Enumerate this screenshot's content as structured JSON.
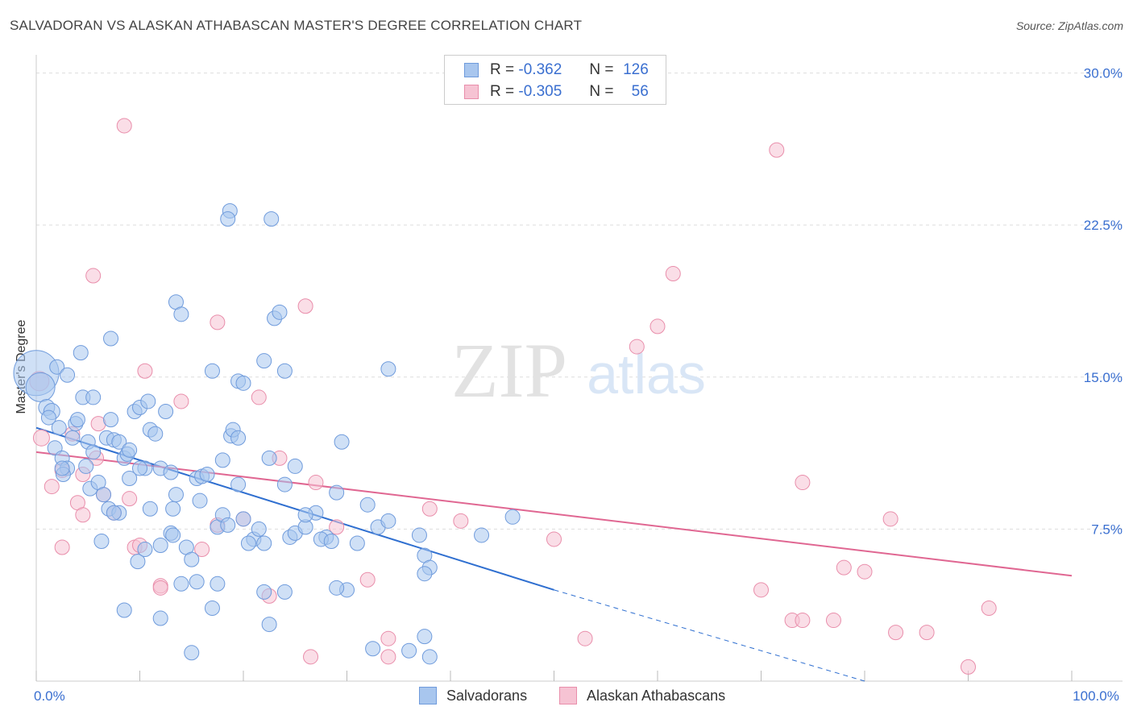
{
  "header": {
    "title": "SALVADORAN VS ALASKAN ATHABASCAN MASTER'S DEGREE CORRELATION CHART",
    "source": "Source: ZipAtlas.com"
  },
  "watermark": {
    "zip": "ZIP",
    "atlas": "atlas"
  },
  "legend": {
    "rows": [
      {
        "r_label": "R =",
        "r_value": "-0.362",
        "n_label": "N =",
        "n_value": "126"
      },
      {
        "r_label": "R =",
        "r_value": "-0.305",
        "n_label": "N =",
        "n_value": "56"
      }
    ]
  },
  "bottom_legend": {
    "series1": "Salvadorans",
    "series2": "Alaskan Athabascans"
  },
  "colors": {
    "blue_fill": "#a8c6ee",
    "blue_stroke": "#6f9bdc",
    "blue_line": "#2f6fd0",
    "pink_fill": "#f6c3d3",
    "pink_stroke": "#e98eab",
    "pink_line": "#e06792",
    "axis_text": "#3a6fd0",
    "grid": "#dddddd"
  },
  "chart_data": {
    "type": "scatter",
    "title": "SALVADORAN VS ALASKAN ATHABASCAN MASTER'S DEGREE CORRELATION CHART",
    "xlabel": "",
    "ylabel": "Master's Degree",
    "xlim": [
      0,
      100
    ],
    "ylim": [
      0,
      30.5
    ],
    "x_tick_labels": [
      {
        "x": 0,
        "label": "0.0%"
      },
      {
        "x": 100,
        "label": "100.0%"
      }
    ],
    "y_tick_labels": [
      {
        "y": 7.5,
        "label": "7.5%"
      },
      {
        "y": 15,
        "label": "15.0%"
      },
      {
        "y": 22.5,
        "label": "22.5%"
      },
      {
        "y": 30,
        "label": "30.0%"
      }
    ],
    "series": [
      {
        "name": "Salvadorans",
        "R": -0.362,
        "N": 126,
        "trend": {
          "x0": 0,
          "y0": 12.5,
          "x1": 50,
          "y1": 4.5,
          "dashed_to_x": 80,
          "dashed_to_y": 0
        },
        "points": [
          [
            0,
            15.2,
            28
          ],
          [
            0.4,
            14.5,
            18
          ],
          [
            1,
            13.5,
            10
          ],
          [
            1.5,
            13.3,
            10
          ],
          [
            1.2,
            13,
            9
          ],
          [
            2,
            15.5,
            9
          ],
          [
            2.2,
            12.5,
            9
          ],
          [
            3,
            15.1,
            9
          ],
          [
            1.8,
            11.5,
            9
          ],
          [
            2.5,
            11,
            9
          ],
          [
            3,
            10.5,
            9
          ],
          [
            2.6,
            10.2,
            9
          ],
          [
            3.5,
            12,
            9
          ],
          [
            3.8,
            12.7,
            9
          ],
          [
            4,
            12.9,
            9
          ],
          [
            4.3,
            16.2,
            9
          ],
          [
            4.5,
            14,
            9
          ],
          [
            5.5,
            14,
            9
          ],
          [
            4.8,
            10.6,
            9
          ],
          [
            5,
            11.8,
            9
          ],
          [
            5.2,
            9.5,
            9
          ],
          [
            6,
            9.8,
            9
          ],
          [
            5.5,
            11.3,
            9
          ],
          [
            6.5,
            9.2,
            9
          ],
          [
            7,
            8.5,
            9
          ],
          [
            6.8,
            12,
            9
          ],
          [
            7.2,
            12.9,
            9
          ],
          [
            7.5,
            11.9,
            9
          ],
          [
            8,
            11.8,
            9
          ],
          [
            8.5,
            11,
            9
          ],
          [
            8.8,
            11.2,
            9
          ],
          [
            9,
            11.4,
            9
          ],
          [
            7.2,
            16.9,
            9
          ],
          [
            9,
            10,
            9
          ],
          [
            9.5,
            13.3,
            9
          ],
          [
            10,
            13.5,
            9
          ],
          [
            10.5,
            10.5,
            9
          ],
          [
            10.8,
            13.8,
            9
          ],
          [
            11,
            12.4,
            9
          ],
          [
            11.5,
            12.2,
            9
          ],
          [
            12,
            10.5,
            9
          ],
          [
            12.5,
            13.3,
            9
          ],
          [
            13,
            10.3,
            9
          ],
          [
            13.5,
            9.2,
            9
          ],
          [
            13.2,
            8.5,
            9
          ],
          [
            12,
            6.7,
            9
          ],
          [
            11,
            8.5,
            9
          ],
          [
            9.8,
            5.9,
            9
          ],
          [
            10.5,
            6.5,
            9
          ],
          [
            13,
            7.3,
            9
          ],
          [
            13.2,
            7.2,
            9
          ],
          [
            14.5,
            6.6,
            9
          ],
          [
            15,
            6,
            9
          ],
          [
            15.5,
            10,
            9
          ],
          [
            15.8,
            8.9,
            9
          ],
          [
            16,
            10.1,
            9
          ],
          [
            16.5,
            10.2,
            9
          ],
          [
            17,
            15.3,
            9
          ],
          [
            17.5,
            7.6,
            9
          ],
          [
            18,
            8.2,
            9
          ],
          [
            18.5,
            7.7,
            9
          ],
          [
            18.8,
            12.1,
            9
          ],
          [
            19,
            12.4,
            9
          ],
          [
            19.5,
            12,
            9
          ],
          [
            19.5,
            9.7,
            9
          ],
          [
            20,
            8,
            9
          ],
          [
            19.5,
            14.8,
            9
          ],
          [
            20,
            14.7,
            9
          ],
          [
            21,
            7,
            9
          ],
          [
            20.5,
            6.8,
            9
          ],
          [
            21.5,
            7.5,
            9
          ],
          [
            22,
            6.8,
            9
          ],
          [
            22,
            15.8,
            9
          ],
          [
            22.5,
            11,
            9
          ],
          [
            24,
            15.3,
            9
          ],
          [
            23,
            17.9,
            9
          ],
          [
            23.5,
            18.2,
            9
          ],
          [
            24,
            9.7,
            9
          ],
          [
            24.5,
            7.1,
            9
          ],
          [
            25,
            7.3,
            9
          ],
          [
            26,
            7.6,
            9
          ],
          [
            27,
            8.3,
            9
          ],
          [
            28,
            7.1,
            9
          ],
          [
            27.5,
            7,
            9
          ],
          [
            28.5,
            6.9,
            9
          ],
          [
            29,
            9.3,
            9
          ],
          [
            29.5,
            11.8,
            9
          ],
          [
            30,
            4.5,
            9
          ],
          [
            29,
            4.6,
            9
          ],
          [
            32,
            8.7,
            9
          ],
          [
            31,
            6.8,
            9
          ],
          [
            33,
            7.6,
            9
          ],
          [
            32.5,
            1.6,
            9
          ],
          [
            34,
            7.9,
            9
          ],
          [
            36,
            1.5,
            9
          ],
          [
            37,
            7.2,
            9
          ],
          [
            37.5,
            6.2,
            9
          ],
          [
            38,
            5.6,
            9
          ],
          [
            37.5,
            5.3,
            9
          ],
          [
            34,
            15.4,
            9
          ],
          [
            37.5,
            2.2,
            9
          ],
          [
            38,
            1.2,
            9
          ],
          [
            43,
            7.2,
            9
          ],
          [
            46,
            8.1,
            9
          ],
          [
            22.5,
            2.8,
            9
          ],
          [
            18,
            10.9,
            9
          ],
          [
            25,
            10.6,
            9
          ],
          [
            26,
            8.2,
            9
          ],
          [
            24,
            4.4,
            9
          ],
          [
            22,
            4.4,
            9
          ],
          [
            17,
            3.6,
            9
          ],
          [
            15.5,
            4.9,
            9
          ],
          [
            17.5,
            4.8,
            9
          ],
          [
            14,
            4.8,
            9
          ],
          [
            12,
            3.1,
            9
          ],
          [
            8.5,
            3.5,
            9
          ],
          [
            15,
            1.4,
            9
          ],
          [
            8,
            8.3,
            9
          ],
          [
            7.5,
            8.3,
            9
          ],
          [
            6.3,
            6.9,
            9
          ],
          [
            2.5,
            10.5,
            9
          ],
          [
            18.7,
            23.2,
            9
          ],
          [
            18.5,
            22.8,
            9
          ],
          [
            22.7,
            22.8,
            9
          ],
          [
            13.5,
            18.7,
            9
          ],
          [
            14,
            18.1,
            9
          ],
          [
            10,
            10.5,
            9
          ]
        ]
      },
      {
        "name": "Alaskan Athabascans",
        "R": -0.305,
        "N": 56,
        "trend": {
          "x0": 0,
          "y0": 11.3,
          "x1": 100,
          "y1": 5.2
        },
        "points": [
          [
            0.3,
            14.8,
            12
          ],
          [
            0.5,
            12,
            10
          ],
          [
            1.5,
            9.6,
            9
          ],
          [
            2.5,
            10.4,
            9
          ],
          [
            2.5,
            6.6,
            9
          ],
          [
            3.5,
            12.2,
            9
          ],
          [
            4,
            8.8,
            9
          ],
          [
            4.5,
            8.2,
            9
          ],
          [
            4.5,
            10.2,
            9
          ],
          [
            5.5,
            20,
            9
          ],
          [
            5.8,
            11,
            9
          ],
          [
            6,
            12.7,
            9
          ],
          [
            6.5,
            9.2,
            9
          ],
          [
            7.5,
            8.3,
            9
          ],
          [
            8.5,
            27.4,
            9
          ],
          [
            9,
            9,
            9
          ],
          [
            9.5,
            6.6,
            9
          ],
          [
            10,
            6.7,
            9
          ],
          [
            10.5,
            15.3,
            9
          ],
          [
            12,
            4.7,
            9
          ],
          [
            12,
            4.6,
            9
          ],
          [
            14,
            13.8,
            9
          ],
          [
            16,
            6.5,
            9
          ],
          [
            17.5,
            17.7,
            9
          ],
          [
            17.5,
            7.7,
            9
          ],
          [
            20,
            8,
            9
          ],
          [
            21.5,
            14,
            9
          ],
          [
            22.5,
            4.2,
            9
          ],
          [
            23.5,
            11,
            9
          ],
          [
            26,
            18.5,
            9
          ],
          [
            26.5,
            1.2,
            9
          ],
          [
            27,
            9.8,
            9
          ],
          [
            29,
            7.6,
            9
          ],
          [
            32,
            5,
            9
          ],
          [
            34,
            1.2,
            9
          ],
          [
            34,
            2.1,
            9
          ],
          [
            38,
            8.5,
            9
          ],
          [
            41,
            7.9,
            9
          ],
          [
            50,
            7,
            9
          ],
          [
            53,
            2.1,
            9
          ],
          [
            58,
            16.5,
            9
          ],
          [
            60,
            17.5,
            9
          ],
          [
            61.5,
            20.1,
            9
          ],
          [
            70,
            4.5,
            9
          ],
          [
            71.5,
            26.2,
            9
          ],
          [
            73,
            3,
            9
          ],
          [
            74,
            3,
            9
          ],
          [
            74,
            9.8,
            9
          ],
          [
            77,
            3,
            9
          ],
          [
            78,
            5.6,
            9
          ],
          [
            80,
            5.4,
            9
          ],
          [
            82.5,
            8,
            9
          ],
          [
            83,
            2.4,
            9
          ],
          [
            86,
            2.4,
            9
          ],
          [
            90,
            0.7,
            9
          ],
          [
            92,
            3.6,
            9
          ]
        ]
      }
    ]
  }
}
